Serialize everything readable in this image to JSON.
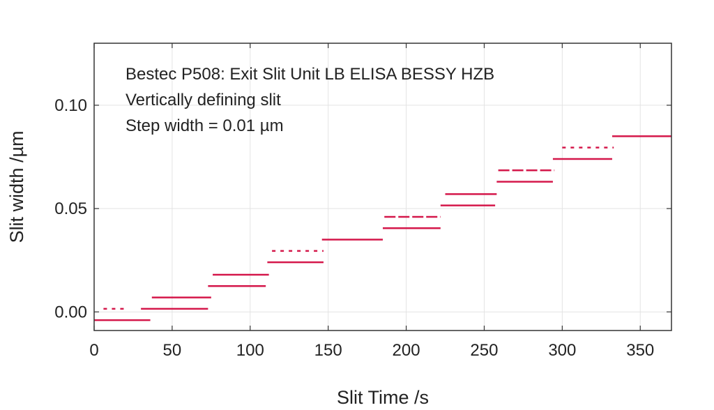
{
  "chart_data": {
    "type": "line",
    "title": "",
    "annotations": [
      "Bestec P508: Exit Slit Unit LB ELISA BESSY HZB",
      "Vertically defining slit",
      "Step width = 0.01 µm"
    ],
    "xlabel": "Slit Time /s",
    "ylabel": "Slit width /µm",
    "xlim": [
      0,
      370
    ],
    "ylim": [
      -0.009,
      0.13
    ],
    "xticks": [
      0,
      50,
      100,
      150,
      200,
      250,
      300,
      350
    ],
    "yticks": [
      0.0,
      0.05,
      0.1
    ],
    "ytick_labels": [
      "0.00",
      "0.05",
      "0.10"
    ],
    "grid": true,
    "line_color": "#d4174a",
    "segments": [
      {
        "x": [
          0,
          36
        ],
        "y": -0.004,
        "style": "solid"
      },
      {
        "x": [
          6,
          20
        ],
        "y": 0.0015,
        "style": "dotted"
      },
      {
        "x": [
          30,
          73
        ],
        "y": 0.0015,
        "style": "solid"
      },
      {
        "x": [
          37,
          75
        ],
        "y": 0.007,
        "style": "solid"
      },
      {
        "x": [
          73,
          110
        ],
        "y": 0.0125,
        "style": "solid"
      },
      {
        "x": [
          76,
          112
        ],
        "y": 0.018,
        "style": "solid"
      },
      {
        "x": [
          111,
          147
        ],
        "y": 0.024,
        "style": "solid"
      },
      {
        "x": [
          114,
          147
        ],
        "y": 0.0295,
        "style": "dotted"
      },
      {
        "x": [
          146,
          185
        ],
        "y": 0.035,
        "style": "solid"
      },
      {
        "x": [
          185,
          222
        ],
        "y": 0.0405,
        "style": "solid"
      },
      {
        "x": [
          186,
          222
        ],
        "y": 0.046,
        "style": "dashed"
      },
      {
        "x": [
          222,
          257
        ],
        "y": 0.0515,
        "style": "solid"
      },
      {
        "x": [
          225,
          258
        ],
        "y": 0.057,
        "style": "solid"
      },
      {
        "x": [
          258,
          294
        ],
        "y": 0.063,
        "style": "solid"
      },
      {
        "x": [
          259,
          295
        ],
        "y": 0.0685,
        "style": "dashed"
      },
      {
        "x": [
          294,
          332
        ],
        "y": 0.074,
        "style": "solid"
      },
      {
        "x": [
          300,
          333
        ],
        "y": 0.0795,
        "style": "dotted"
      },
      {
        "x": [
          332,
          370
        ],
        "y": 0.085,
        "style": "solid"
      }
    ]
  }
}
